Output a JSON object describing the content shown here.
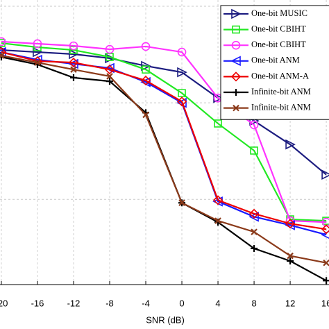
{
  "chart_data": {
    "type": "line",
    "xlabel": "SNR (dB)",
    "x": [
      -20,
      -16,
      -12,
      -8,
      -4,
      0,
      4,
      8,
      12,
      16
    ],
    "xlim": [
      -20.15,
      16.3
    ],
    "xticks": [
      -20,
      -16,
      -12,
      -8,
      -4,
      0,
      4,
      8,
      12,
      16
    ],
    "ylim": [
      0.0131,
      11.6
    ],
    "yticks": [
      0.1,
      1,
      10
    ],
    "log_y": true,
    "grid": true,
    "legend": "upper right",
    "series": [
      {
        "name": "One-bit MUSIC",
        "color": "#1c1c80",
        "marker": "triangle-right",
        "values": [
          3.52,
          3.35,
          3.19,
          2.89,
          2.41,
          2.07,
          1.12,
          0.65,
          0.37,
          0.18
        ]
      },
      {
        "name": "One-bit CBIHT",
        "color": "#22e822",
        "marker": "square",
        "values": [
          4.15,
          3.76,
          3.52,
          2.98,
          2.21,
          1.26,
          0.61,
          0.32,
          0.062,
          0.06
        ]
      },
      {
        "name": "One-bit CBIHT",
        "color": "#ff33ff",
        "marker": "circle",
        "values": [
          4.3,
          4.09,
          3.89,
          3.58,
          3.83,
          3.35,
          1.12,
          0.59,
          0.06,
          0.058
        ]
      },
      {
        "name": "One-bit ANM",
        "color": "#1a1aff",
        "marker": "triangle-left",
        "values": [
          3.35,
          2.79,
          2.53,
          2.29,
          1.64,
          1,
          0.095,
          0.066,
          0.054,
          0.043
        ]
      },
      {
        "name": "One-bit ANM-A",
        "color": "#ee0000",
        "marker": "diamond",
        "values": [
          3.35,
          2.7,
          2.61,
          2.21,
          1.7,
          1.03,
          0.098,
          0.071,
          0.056,
          0.049
        ]
      },
      {
        "name": "Infinite-bit ANM",
        "color": "#000000",
        "marker": "plus",
        "values": [
          2.98,
          2.49,
          1.82,
          1.67,
          0.79,
          0.092,
          0.058,
          0.031,
          0.023,
          0.0144
        ]
      },
      {
        "name": "Infinite-bit ANM",
        "color": "#8b3a1a",
        "marker": "cross",
        "values": [
          3.08,
          2.61,
          2.21,
          1.88,
          0.75,
          0.092,
          0.06,
          0.046,
          0.026,
          0.022
        ]
      }
    ]
  }
}
